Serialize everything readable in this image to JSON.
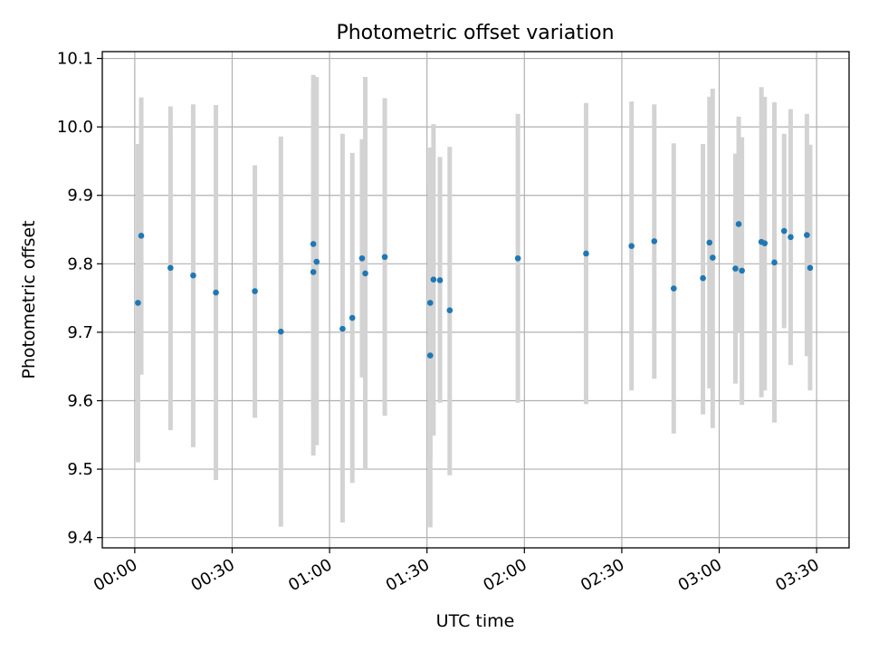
{
  "chart_data": {
    "type": "scatter",
    "title": "Photometric offset variation",
    "xlabel": "UTC time",
    "ylabel": "Photometric offset",
    "x_unit": "HH:MM UTC",
    "xlim": [
      "23:50",
      "03:40"
    ],
    "ylim": [
      9.385,
      10.11
    ],
    "x_ticks": [
      "00:00",
      "00:30",
      "01:00",
      "01:30",
      "02:00",
      "02:30",
      "03:00",
      "03:30"
    ],
    "y_ticks": [
      "9.4",
      "9.5",
      "9.6",
      "9.7",
      "9.8",
      "9.9",
      "10.0",
      "10.1"
    ],
    "grid": true,
    "legend": "none",
    "marker_color": "#1f77b4",
    "errorbar_color": "#d3d3d3",
    "series": [
      {
        "points": [
          {
            "x": "00:01",
            "y": 9.743,
            "ylow": 9.51,
            "yhigh": 9.975
          },
          {
            "x": "00:02",
            "y": 9.841,
            "ylow": 9.638,
            "yhigh": 10.043
          },
          {
            "x": "00:11",
            "y": 9.794,
            "ylow": 9.557,
            "yhigh": 10.03
          },
          {
            "x": "00:18",
            "y": 9.783,
            "ylow": 9.532,
            "yhigh": 10.033
          },
          {
            "x": "00:25",
            "y": 9.758,
            "ylow": 9.484,
            "yhigh": 10.032
          },
          {
            "x": "00:37",
            "y": 9.76,
            "ylow": 9.575,
            "yhigh": 9.944
          },
          {
            "x": "00:45",
            "y": 9.701,
            "ylow": 9.416,
            "yhigh": 9.986
          },
          {
            "x": "00:55",
            "y": 9.829,
            "ylow": 9.583,
            "yhigh": 10.076
          },
          {
            "x": "00:55",
            "y": 9.788,
            "ylow": 9.52,
            "yhigh": 10.057
          },
          {
            "x": "00:56",
            "y": 9.803,
            "ylow": 9.535,
            "yhigh": 10.073
          },
          {
            "x": "01:04",
            "y": 9.705,
            "ylow": 9.422,
            "yhigh": 9.99
          },
          {
            "x": "01:07",
            "y": 9.721,
            "ylow": 9.48,
            "yhigh": 9.962
          },
          {
            "x": "01:10",
            "y": 9.808,
            "ylow": 9.634,
            "yhigh": 9.982
          },
          {
            "x": "01:11",
            "y": 9.786,
            "ylow": 9.5,
            "yhigh": 10.073
          },
          {
            "x": "01:17",
            "y": 9.81,
            "ylow": 9.578,
            "yhigh": 10.042
          },
          {
            "x": "01:31",
            "y": 9.666,
            "ylow": 9.415,
            "yhigh": 9.917
          },
          {
            "x": "01:31",
            "y": 9.743,
            "ylow": 9.513,
            "yhigh": 9.97
          },
          {
            "x": "01:32",
            "y": 9.777,
            "ylow": 9.549,
            "yhigh": 10.004
          },
          {
            "x": "01:34",
            "y": 9.776,
            "ylow": 9.597,
            "yhigh": 9.956
          },
          {
            "x": "01:37",
            "y": 9.732,
            "ylow": 9.491,
            "yhigh": 9.971
          },
          {
            "x": "01:58",
            "y": 9.808,
            "ylow": 9.597,
            "yhigh": 10.019
          },
          {
            "x": "02:19",
            "y": 9.815,
            "ylow": 9.595,
            "yhigh": 10.035
          },
          {
            "x": "02:33",
            "y": 9.826,
            "ylow": 9.615,
            "yhigh": 10.037
          },
          {
            "x": "02:40",
            "y": 9.833,
            "ylow": 9.632,
            "yhigh": 10.033
          },
          {
            "x": "02:46",
            "y": 9.764,
            "ylow": 9.552,
            "yhigh": 9.976
          },
          {
            "x": "02:55",
            "y": 9.779,
            "ylow": 9.58,
            "yhigh": 9.975
          },
          {
            "x": "02:57",
            "y": 9.831,
            "ylow": 9.618,
            "yhigh": 10.044
          },
          {
            "x": "02:58",
            "y": 9.809,
            "ylow": 9.56,
            "yhigh": 10.056
          },
          {
            "x": "03:05",
            "y": 9.793,
            "ylow": 9.625,
            "yhigh": 9.961
          },
          {
            "x": "03:06",
            "y": 9.858,
            "ylow": 9.7,
            "yhigh": 10.015
          },
          {
            "x": "03:07",
            "y": 9.79,
            "ylow": 9.594,
            "yhigh": 9.985
          },
          {
            "x": "03:13",
            "y": 9.832,
            "ylow": 9.605,
            "yhigh": 10.058
          },
          {
            "x": "03:14",
            "y": 9.83,
            "ylow": 9.615,
            "yhigh": 10.044
          },
          {
            "x": "03:17",
            "y": 9.802,
            "ylow": 9.568,
            "yhigh": 10.036
          },
          {
            "x": "03:20",
            "y": 9.848,
            "ylow": 9.706,
            "yhigh": 9.99
          },
          {
            "x": "03:22",
            "y": 9.839,
            "ylow": 9.652,
            "yhigh": 10.026
          },
          {
            "x": "03:27",
            "y": 9.842,
            "ylow": 9.665,
            "yhigh": 10.019
          },
          {
            "x": "03:28",
            "y": 9.794,
            "ylow": 9.615,
            "yhigh": 9.974
          }
        ]
      }
    ]
  }
}
